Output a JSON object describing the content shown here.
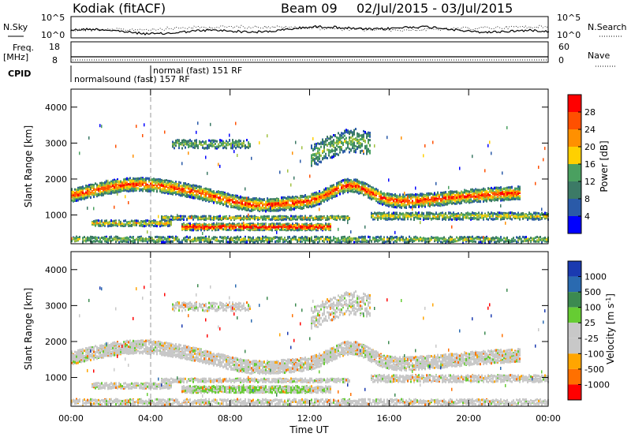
{
  "header": {
    "station": "Kodiak (fitACF)",
    "beam": "Beam 09",
    "dates": "02/Jul/2015 - 03/Jul/2015"
  },
  "strips": {
    "nsky_label": "N.Sky",
    "nsky_top": "10^5",
    "nsky_bottom": "10^0",
    "nsearch_label": "N.Search",
    "nsearch_top": "10^5",
    "nsearch_bottom": "10^0",
    "freq_label": "Freq.",
    "freq_unit": "[MHz]",
    "freq_top": "18",
    "freq_bottom": "8",
    "nave_label": "Nave",
    "nave_top": "60",
    "nave_bottom": "0",
    "cpid_label": "CPID",
    "cpid_mode_1": "normalsound (fast) 157 RF",
    "cpid_mode_2": "normal (fast) 151 RF"
  },
  "chart_data": [
    {
      "type": "heatmap",
      "panel": "power",
      "xlabel": "",
      "ylabel": "Slant Range [km]",
      "x_ticks": [
        "00:00",
        "04:00",
        "08:00",
        "12:00",
        "16:00",
        "20:00",
        "00:00"
      ],
      "y_ticks": [
        1000,
        2000,
        3000,
        4000
      ],
      "ylim": [
        200,
        4500
      ],
      "colorbar": {
        "label": "Power [dB]",
        "ticks": [
          4,
          8,
          12,
          16,
          20,
          24,
          28
        ],
        "range": [
          0,
          32
        ]
      }
    },
    {
      "type": "heatmap",
      "panel": "velocity",
      "xlabel": "Time UT",
      "ylabel": "Slant Range [km]",
      "x_ticks": [
        "00:00",
        "04:00",
        "08:00",
        "12:00",
        "16:00",
        "20:00",
        "00:00"
      ],
      "y_ticks": [
        1000,
        2000,
        3000,
        4000
      ],
      "ylim": [
        200,
        4500
      ],
      "colorbar": {
        "label": "Velocity [m s^-1]",
        "ticks": [
          "1000",
          "500",
          "100",
          "25",
          "-25",
          "-100",
          "-500",
          "-1000"
        ]
      }
    }
  ],
  "colors": {
    "power_scale": [
      "#0000ff",
      "#2a5aa8",
      "#3c7a66",
      "#4aa060",
      "#a0c040",
      "#ffd000",
      "#ff9000",
      "#ff5000",
      "#ff0000"
    ],
    "velocity_scale": [
      "#1a3ab0",
      "#2a6ab0",
      "#3c8a50",
      "#66cc33",
      "#c8c8c8",
      "#c8c8c8",
      "#ffa500",
      "#ff7000",
      "#ff0000"
    ]
  }
}
